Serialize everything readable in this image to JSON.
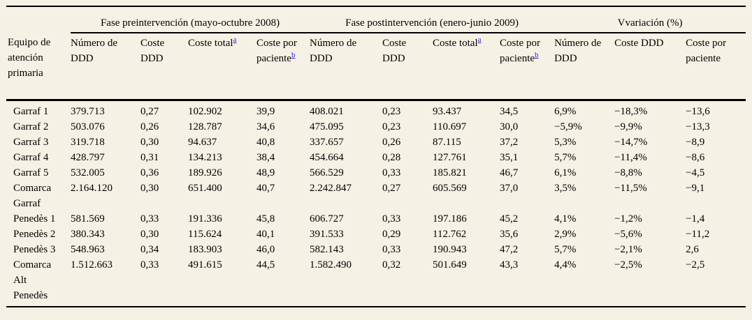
{
  "page": {
    "background": "#f5f1e5",
    "link_color": "#2525cb"
  },
  "table": {
    "col_groups": [
      {
        "label": "",
        "span": 1
      },
      {
        "label": "Fase preintervención (mayo-octubre 2008)",
        "span": 4
      },
      {
        "label": "Fase postintervención (enero-junio 2009)",
        "span": 4
      },
      {
        "label": "Vvariación (%)",
        "span": 3
      }
    ],
    "columns": [
      {
        "label": "Equipo de atención primaria"
      },
      {
        "label": "Número de DDD"
      },
      {
        "label": "Coste DDD"
      },
      {
        "label": "Coste total",
        "sup": "a"
      },
      {
        "label": "Coste por paciente",
        "sup": "b"
      },
      {
        "label": "Número de DDD"
      },
      {
        "label": "Coste DDD"
      },
      {
        "label": "Coste total",
        "sup": "a"
      },
      {
        "label": "Coste por paciente",
        "sup": "b"
      },
      {
        "label": "Número de DDD"
      },
      {
        "label": "Coste DDD"
      },
      {
        "label": "Coste por paciente"
      }
    ],
    "rows": [
      [
        "Garraf 1",
        "379.713",
        "0,27",
        "102.902",
        "39,9",
        "408.021",
        "0,23",
        "93.437",
        "34,5",
        "6,9%",
        "−18,3%",
        "−13,6"
      ],
      [
        "Garraf 2",
        "503.076",
        "0,26",
        "128.787",
        "34,6",
        "475.095",
        "0,23",
        "110.697",
        "30,0",
        "−5,9%",
        "−9,9%",
        "−13,3"
      ],
      [
        "Garraf 3",
        "319.718",
        "0,30",
        "94.637",
        "40,8",
        "337.657",
        "0,26",
        "87.115",
        "37,2",
        "5,3%",
        "−14,7%",
        "−8,9"
      ],
      [
        "Garraf 4",
        "428.797",
        "0,31",
        "134.213",
        "38,4",
        "454.664",
        "0,28",
        "127.761",
        "35,1",
        "5,7%",
        "−11,4%",
        "−8,6"
      ],
      [
        "Garraf 5",
        "532.005",
        "0,36",
        "189.926",
        "48,9",
        "566.529",
        "0,33",
        "185.821",
        "46,7",
        "6,1%",
        "−8,8%",
        "−4,5"
      ],
      [
        "Comarca Garraf",
        "2.164.120",
        "0,30",
        "651.400",
        "40,7",
        "2.242.847",
        "0,27",
        "605.569",
        "37,0",
        "3,5%",
        "−11,5%",
        "−9,1"
      ],
      [
        "Penedès 1",
        "581.569",
        "0,33",
        "191.336",
        "45,8",
        "606.727",
        "0,33",
        "197.186",
        "45,2",
        "4,1%",
        "−1,2%",
        "−1,4"
      ],
      [
        "Penedès 2",
        "380.343",
        "0,30",
        "115.624",
        "40,1",
        "391.533",
        "0,29",
        "112.762",
        "35,6",
        "2,9%",
        "−5,6%",
        "−11,2"
      ],
      [
        "Penedès 3",
        "548.963",
        "0,34",
        "183.903",
        "46,0",
        "582.143",
        "0,33",
        "190.943",
        "47,2",
        "5,7%",
        "−2,1%",
        "2,6"
      ],
      [
        "Comarca Alt Penedès",
        "1.512.663",
        "0,33",
        "491.615",
        "44,5",
        "1.582.490",
        "0,32",
        "501.649",
        "43,3",
        "4,4%",
        "−2,5%",
        "−2,5"
      ]
    ]
  }
}
